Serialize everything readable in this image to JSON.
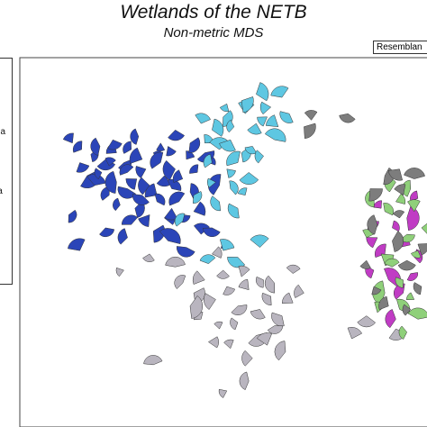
{
  "chart_data": {
    "type": "scatter",
    "title": "Wetlands of the NETB",
    "subtitle": "Non-metric MDS",
    "resemblance_label": "Resemblan",
    "legend_fragments": [
      "ua",
      "la"
    ],
    "marker": "wedge",
    "grid": false,
    "colors": {
      "dark_blue": "#2b45b8",
      "cyan": "#5ec7e2",
      "gray": "#b9b5bf",
      "magenta": "#c03cc4",
      "green": "#8fd07a",
      "dark_gray": "#7d7d7d"
    },
    "series": [
      {
        "color_key": "dark_blue",
        "points": [
          [
            -0.9,
            0.62
          ],
          [
            -0.85,
            0.58
          ],
          [
            -0.8,
            0.55
          ],
          [
            -0.75,
            0.6
          ],
          [
            -0.72,
            0.52
          ],
          [
            -0.7,
            0.48
          ],
          [
            -0.66,
            0.56
          ],
          [
            -0.62,
            0.5
          ],
          [
            -0.6,
            0.44
          ],
          [
            -0.58,
            0.58
          ],
          [
            -0.55,
            0.4
          ],
          [
            -0.52,
            0.52
          ],
          [
            -0.5,
            0.46
          ],
          [
            -0.48,
            0.36
          ],
          [
            -0.46,
            0.56
          ],
          [
            -0.44,
            0.3
          ],
          [
            -0.42,
            0.5
          ],
          [
            -0.4,
            0.42
          ],
          [
            -0.38,
            0.6
          ],
          [
            -0.36,
            0.34
          ],
          [
            -0.34,
            0.46
          ],
          [
            -0.32,
            0.26
          ],
          [
            -0.3,
            0.4
          ],
          [
            -0.28,
            0.52
          ],
          [
            -0.26,
            0.32
          ],
          [
            -0.82,
            0.42
          ],
          [
            -0.78,
            0.36
          ],
          [
            -0.74,
            0.44
          ],
          [
            -0.7,
            0.3
          ],
          [
            -0.66,
            0.38
          ],
          [
            -0.64,
            0.24
          ],
          [
            -0.6,
            0.34
          ],
          [
            -0.56,
            0.22
          ],
          [
            -0.52,
            0.3
          ],
          [
            -0.48,
            0.18
          ],
          [
            -0.44,
            0.26
          ],
          [
            -0.4,
            0.16
          ],
          [
            -0.36,
            0.22
          ],
          [
            -0.3,
            0.18
          ],
          [
            -0.24,
            0.2
          ],
          [
            -0.86,
            0.5
          ],
          [
            -0.68,
            0.64
          ],
          [
            -0.54,
            0.66
          ],
          [
            -0.42,
            0.62
          ],
          [
            -0.34,
            0.7
          ],
          [
            -0.22,
            0.44
          ],
          [
            -0.16,
            0.5
          ],
          [
            -0.1,
            0.36
          ],
          [
            -0.2,
            0.06
          ],
          [
            -0.14,
            0.1
          ],
          [
            -0.08,
            0.02
          ],
          [
            -0.72,
            0.1
          ],
          [
            -0.6,
            0.04
          ],
          [
            -0.86,
            -0.04
          ],
          [
            -0.92,
            0.18
          ],
          [
            -0.26,
            0.62
          ],
          [
            -0.18,
            0.56
          ],
          [
            -0.58,
            0.12
          ],
          [
            -0.46,
            0.08
          ],
          [
            -0.38,
            0.02
          ],
          [
            -0.28,
            -0.02
          ]
        ]
      },
      {
        "color_key": "cyan",
        "points": [
          [
            -0.2,
            0.74
          ],
          [
            -0.14,
            0.7
          ],
          [
            -0.08,
            0.78
          ],
          [
            -0.02,
            0.72
          ],
          [
            0.04,
            0.8
          ],
          [
            0.1,
            0.74
          ],
          [
            0.16,
            0.78
          ],
          [
            0.22,
            0.72
          ],
          [
            0.28,
            0.8
          ],
          [
            -0.18,
            0.62
          ],
          [
            -0.1,
            0.58
          ],
          [
            -0.04,
            0.64
          ],
          [
            0.02,
            0.56
          ],
          [
            0.08,
            0.6
          ],
          [
            -0.14,
            0.5
          ],
          [
            -0.06,
            0.46
          ],
          [
            0.0,
            0.5
          ],
          [
            0.06,
            0.44
          ],
          [
            -0.12,
            0.38
          ],
          [
            -0.04,
            0.34
          ],
          [
            0.04,
            0.3
          ],
          [
            -0.1,
            0.26
          ],
          [
            0.0,
            0.22
          ],
          [
            0.02,
            0.88
          ],
          [
            0.1,
            0.92
          ],
          [
            -0.06,
            0.86
          ],
          [
            0.2,
            0.64
          ],
          [
            0.14,
            0.54
          ],
          [
            -0.24,
            0.3
          ],
          [
            -0.08,
            -0.04
          ],
          [
            0.0,
            -0.08
          ],
          [
            0.12,
            -0.02
          ],
          [
            -0.16,
            -0.12
          ],
          [
            -0.3,
            0.14
          ],
          [
            0.24,
            0.9
          ],
          [
            0.18,
            0.84
          ]
        ]
      },
      {
        "color_key": "gray",
        "points": [
          [
            -0.3,
            -0.24
          ],
          [
            -0.24,
            -0.3
          ],
          [
            -0.18,
            -0.22
          ],
          [
            -0.12,
            -0.34
          ],
          [
            -0.06,
            -0.26
          ],
          [
            0.0,
            -0.38
          ],
          [
            0.06,
            -0.28
          ],
          [
            0.12,
            -0.4
          ],
          [
            0.18,
            -0.32
          ],
          [
            0.24,
            -0.44
          ],
          [
            0.3,
            -0.36
          ],
          [
            -0.2,
            -0.46
          ],
          [
            -0.1,
            -0.52
          ],
          [
            0.0,
            -0.48
          ],
          [
            0.1,
            -0.56
          ],
          [
            0.2,
            -0.5
          ],
          [
            -0.26,
            -0.38
          ],
          [
            -0.16,
            -0.6
          ],
          [
            -0.04,
            -0.64
          ],
          [
            0.08,
            -0.7
          ],
          [
            0.16,
            -0.62
          ],
          [
            0.02,
            -0.2
          ],
          [
            -0.08,
            -0.16
          ],
          [
            0.14,
            -0.22
          ],
          [
            -0.34,
            -0.14
          ],
          [
            -0.62,
            -0.16
          ],
          [
            -0.48,
            -0.06
          ],
          [
            -0.06,
            -0.9
          ],
          [
            0.06,
            -0.84
          ],
          [
            -0.46,
            -0.74
          ],
          [
            0.26,
            -0.66
          ],
          [
            0.2,
            -0.24
          ],
          [
            0.3,
            -0.18
          ],
          [
            -0.14,
            -0.06
          ],
          [
            0.36,
            -0.3
          ],
          [
            0.62,
            -0.58
          ],
          [
            0.7,
            -0.44
          ],
          [
            0.86,
            -0.52
          ]
        ]
      },
      {
        "color_key": "magenta",
        "points": [
          [
            0.72,
            0.14
          ],
          [
            0.76,
            0.04
          ],
          [
            0.8,
            -0.06
          ],
          [
            0.84,
            0.1
          ],
          [
            0.88,
            -0.02
          ],
          [
            0.92,
            0.16
          ],
          [
            0.74,
            -0.16
          ],
          [
            0.82,
            -0.22
          ],
          [
            0.9,
            -0.3
          ],
          [
            0.96,
            -0.08
          ],
          [
            0.86,
            -0.46
          ],
          [
            0.98,
            0.28
          ],
          [
            0.78,
            0.22
          ],
          [
            0.94,
            -0.18
          ]
        ]
      },
      {
        "color_key": "green",
        "points": [
          [
            0.74,
            0.28
          ],
          [
            0.8,
            0.2
          ],
          [
            0.86,
            0.26
          ],
          [
            0.92,
            0.06
          ],
          [
            0.96,
            0.2
          ],
          [
            0.98,
            -0.04
          ],
          [
            0.78,
            -0.06
          ],
          [
            0.84,
            -0.14
          ],
          [
            0.9,
            -0.22
          ],
          [
            0.96,
            -0.34
          ],
          [
            0.88,
            -0.4
          ],
          [
            0.8,
            -0.3
          ],
          [
            0.76,
            -0.42
          ],
          [
            0.92,
            -0.54
          ],
          [
            0.98,
            -0.46
          ],
          [
            1.0,
            0.1
          ],
          [
            0.7,
            0.04
          ],
          [
            0.86,
            0.38
          ],
          [
            0.94,
            0.34
          ]
        ]
      },
      {
        "color_key": "dark_gray",
        "points": [
          [
            0.72,
            0.34
          ],
          [
            0.8,
            0.42
          ],
          [
            0.88,
            0.46
          ],
          [
            0.96,
            0.4
          ],
          [
            0.76,
            0.12
          ],
          [
            0.84,
            0.02
          ],
          [
            0.9,
            0.3
          ],
          [
            0.98,
            0.0
          ],
          [
            0.82,
            -0.38
          ],
          [
            0.94,
            -0.4
          ],
          [
            0.7,
            -0.1
          ],
          [
            1.0,
            -0.26
          ],
          [
            0.6,
            0.8
          ],
          [
            0.74,
            -0.26
          ],
          [
            0.88,
            0.16
          ],
          [
            0.92,
            -0.1
          ],
          [
            0.36,
            0.72
          ],
          [
            0.4,
            0.76
          ]
        ]
      }
    ]
  }
}
